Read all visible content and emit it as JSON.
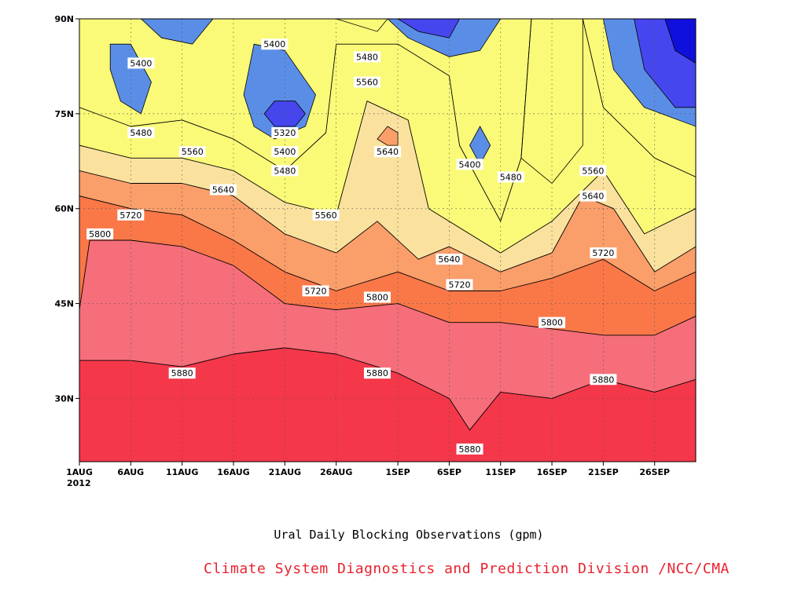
{
  "chart_data": {
    "type": "heatmap",
    "title": "Ural Daily Blocking Observations (gpm)",
    "credit": "Climate System Diagnostics and Prediction Division /NCC/CMA",
    "x_ticks": [
      "1AUG",
      "6AUG",
      "11AUG",
      "16AUG",
      "21AUG",
      "26AUG",
      "1SEP",
      "6SEP",
      "11SEP",
      "16SEP",
      "21SEP",
      "26SEP"
    ],
    "x_year": "2012",
    "y_ticks": [
      "30N",
      "45N",
      "60N",
      "75N",
      "90N"
    ],
    "x_range": [
      "2012-08-01",
      "2012-09-30"
    ],
    "y_range": [
      20,
      90
    ],
    "grid": true,
    "levels": [
      5320,
      5400,
      5480,
      5560,
      5640,
      5720,
      5800,
      5880
    ],
    "level_colors": [
      "#1010dd",
      "#4646ee",
      "#5a8ee6",
      "#64c4fa",
      "#fafa78",
      "#fae29e",
      "#fa9e6a",
      "#fa7848",
      "#f56e7a",
      "#f5374a"
    ],
    "contours": [
      {
        "level": 5880,
        "points": [
          [
            "2012-08-01",
            36
          ],
          [
            "2012-08-06",
            36
          ],
          [
            "2012-08-11",
            35
          ],
          [
            "2012-08-16",
            37
          ],
          [
            "2012-08-21",
            38
          ],
          [
            "2012-08-26",
            37
          ],
          [
            "2012-09-01",
            34
          ],
          [
            "2012-09-06",
            30
          ],
          [
            "2012-09-08",
            25
          ],
          [
            "2012-09-11",
            31
          ],
          [
            "2012-09-16",
            30
          ],
          [
            "2012-09-21",
            33
          ],
          [
            "2012-09-26",
            31
          ],
          [
            "2012-09-30",
            33
          ]
        ]
      },
      {
        "level": 5800,
        "points": [
          [
            "2012-08-01",
            44
          ],
          [
            "2012-08-02",
            55
          ],
          [
            "2012-08-06",
            55
          ],
          [
            "2012-08-11",
            54
          ],
          [
            "2012-08-16",
            51
          ],
          [
            "2012-08-21",
            45
          ],
          [
            "2012-08-26",
            44
          ],
          [
            "2012-09-01",
            45
          ],
          [
            "2012-09-06",
            42
          ],
          [
            "2012-09-11",
            42
          ],
          [
            "2012-09-16",
            41
          ],
          [
            "2012-09-21",
            40
          ],
          [
            "2012-09-26",
            40
          ],
          [
            "2012-09-30",
            43
          ]
        ]
      },
      {
        "level": 5720,
        "points": [
          [
            "2012-08-01",
            62
          ],
          [
            "2012-08-06",
            60
          ],
          [
            "2012-08-11",
            59
          ],
          [
            "2012-08-16",
            55
          ],
          [
            "2012-08-21",
            50
          ],
          [
            "2012-08-26",
            47
          ],
          [
            "2012-09-01",
            50
          ],
          [
            "2012-09-06",
            47
          ],
          [
            "2012-09-11",
            47
          ],
          [
            "2012-09-16",
            49
          ],
          [
            "2012-09-21",
            52
          ],
          [
            "2012-09-26",
            47
          ],
          [
            "2012-09-30",
            50
          ]
        ]
      },
      {
        "level": 5640,
        "points": [
          [
            "2012-08-01",
            66
          ],
          [
            "2012-08-06",
            64
          ],
          [
            "2012-08-11",
            64
          ],
          [
            "2012-08-16",
            62
          ],
          [
            "2012-08-21",
            56
          ],
          [
            "2012-08-26",
            53
          ],
          [
            "2012-08-30",
            58
          ],
          [
            "2012-09-03",
            52
          ],
          [
            "2012-09-06",
            54
          ],
          [
            "2012-09-11",
            50
          ],
          [
            "2012-09-16",
            53
          ],
          [
            "2012-09-19",
            62
          ],
          [
            "2012-09-22",
            60
          ],
          [
            "2012-09-26",
            50
          ],
          [
            "2012-09-30",
            54
          ]
        ]
      },
      {
        "level": 5560,
        "points": [
          [
            "2012-08-01",
            70
          ],
          [
            "2012-08-06",
            68
          ],
          [
            "2012-08-11",
            68
          ],
          [
            "2012-08-16",
            66
          ],
          [
            "2012-08-21",
            61
          ],
          [
            "2012-08-26",
            59
          ],
          [
            "2012-08-29",
            77
          ],
          [
            "2012-09-02",
            74
          ],
          [
            "2012-09-04",
            60
          ],
          [
            "2012-09-11",
            53
          ],
          [
            "2012-09-16",
            58
          ],
          [
            "2012-09-21",
            66
          ],
          [
            "2012-09-25",
            56
          ],
          [
            "2012-09-30",
            60
          ]
        ]
      },
      {
        "level": 5480,
        "points": [
          [
            "2012-08-01",
            76
          ],
          [
            "2012-08-06",
            73
          ],
          [
            "2012-08-11",
            74
          ],
          [
            "2012-08-16",
            71
          ],
          [
            "2012-08-21",
            66
          ],
          [
            "2012-08-25",
            72
          ],
          [
            "2012-08-26",
            86
          ],
          [
            "2012-09-01",
            86
          ],
          [
            "2012-09-06",
            81
          ],
          [
            "2012-09-07",
            70
          ],
          [
            "2012-09-11",
            58
          ],
          [
            "2012-09-13",
            68
          ],
          [
            "2012-09-14",
            90
          ]
        ]
      },
      {
        "level": 5480,
        "points": [
          [
            "2012-09-19",
            90
          ],
          [
            "2012-09-21",
            76
          ],
          [
            "2012-09-26",
            68
          ],
          [
            "2012-09-30",
            65
          ]
        ]
      }
    ],
    "labels": [
      {
        "text": "5400",
        "x": "2012-08-07",
        "y": 83
      },
      {
        "text": "5400",
        "x": "2012-08-20",
        "y": 86
      },
      {
        "text": "5480",
        "x": "2012-08-29",
        "y": 84
      },
      {
        "text": "5560",
        "x": "2012-08-29",
        "y": 80
      },
      {
        "text": "5320",
        "x": "2012-08-21",
        "y": 72
      },
      {
        "text": "5400",
        "x": "2012-08-21",
        "y": 69
      },
      {
        "text": "5480",
        "x": "2012-08-21",
        "y": 66
      },
      {
        "text": "5480",
        "x": "2012-08-07",
        "y": 72
      },
      {
        "text": "5560",
        "x": "2012-08-12",
        "y": 69
      },
      {
        "text": "5640",
        "x": "2012-08-31",
        "y": 69
      },
      {
        "text": "5400",
        "x": "2012-09-08",
        "y": 67
      },
      {
        "text": "5480",
        "x": "2012-09-12",
        "y": 65
      },
      {
        "text": "5560",
        "x": "2012-09-20",
        "y": 66
      },
      {
        "text": "5640",
        "x": "2012-08-15",
        "y": 63
      },
      {
        "text": "5560",
        "x": "2012-08-25",
        "y": 59
      },
      {
        "text": "5720",
        "x": "2012-08-06",
        "y": 59
      },
      {
        "text": "5640",
        "x": "2012-09-20",
        "y": 62
      },
      {
        "text": "5800",
        "x": "2012-08-03",
        "y": 56
      },
      {
        "text": "5640",
        "x": "2012-09-06",
        "y": 52
      },
      {
        "text": "5720",
        "x": "2012-09-21",
        "y": 53
      },
      {
        "text": "5720",
        "x": "2012-08-24",
        "y": 47
      },
      {
        "text": "5720",
        "x": "2012-09-07",
        "y": 48
      },
      {
        "text": "5800",
        "x": "2012-08-30",
        "y": 46
      },
      {
        "text": "5800",
        "x": "2012-09-16",
        "y": 42
      },
      {
        "text": "5880",
        "x": "2012-08-11",
        "y": 34
      },
      {
        "text": "5880",
        "x": "2012-08-30",
        "y": 34
      },
      {
        "text": "5880",
        "x": "2012-09-21",
        "y": 33
      },
      {
        "text": "5880",
        "x": "2012-09-08",
        "y": 22
      }
    ]
  }
}
